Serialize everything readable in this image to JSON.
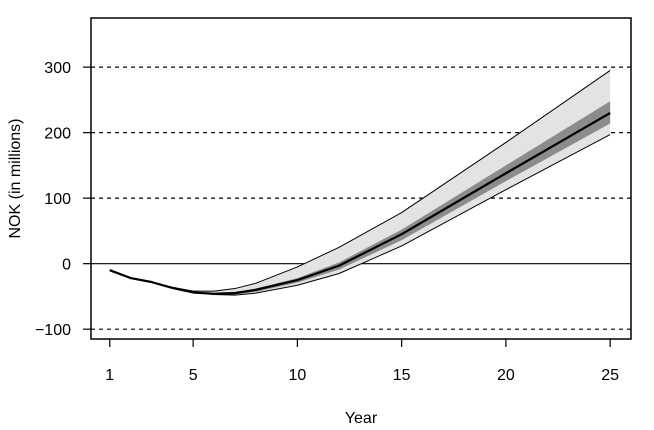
{
  "chart_data": {
    "type": "line",
    "title": "",
    "xlabel": "Year",
    "ylabel": "NOK (in millions)",
    "xlim": [
      0.1,
      26
    ],
    "ylim": [
      -115,
      375
    ],
    "xticks": [
      1,
      5,
      10,
      15,
      20,
      25
    ],
    "yticks": [
      -100,
      0,
      100,
      200,
      300
    ],
    "xtick_labels": [
      "1",
      "5",
      "10",
      "15",
      "20",
      "25"
    ],
    "ytick_labels": [
      "−100",
      "0",
      "100",
      "200",
      "300"
    ],
    "grid": "dashed horizontal lines at y ticks",
    "reference_line": 0,
    "colors": {
      "outer_band": "#e3e3e3",
      "inner_band": "#8c8c8c",
      "line": "#000000"
    },
    "series": [
      {
        "role": "outer_upper",
        "x": [
          1,
          2,
          3,
          4,
          5,
          6,
          7,
          8,
          10,
          12,
          15,
          20,
          25
        ],
        "values": [
          -10,
          -22,
          -28,
          -36,
          -42,
          -42,
          -38,
          -30,
          -5,
          25,
          78,
          185,
          295
        ]
      },
      {
        "role": "inner_upper",
        "x": [
          1,
          2,
          3,
          4,
          5,
          6,
          7,
          8,
          10,
          12,
          15,
          20,
          25
        ],
        "values": [
          -10,
          -22,
          -28,
          -37,
          -43,
          -44,
          -43,
          -38,
          -22,
          2,
          52,
          150,
          248
        ]
      },
      {
        "role": "median",
        "x": [
          1,
          2,
          3,
          4,
          5,
          6,
          7,
          8,
          10,
          12,
          15,
          20,
          25
        ],
        "values": [
          -10,
          -22,
          -28,
          -37,
          -44,
          -46,
          -45,
          -40,
          -25,
          -3,
          45,
          138,
          230
        ]
      },
      {
        "role": "inner_lower",
        "x": [
          1,
          2,
          3,
          4,
          5,
          6,
          7,
          8,
          10,
          12,
          15,
          20,
          25
        ],
        "values": [
          -10,
          -22,
          -28,
          -37,
          -44,
          -47,
          -47,
          -43,
          -29,
          -9,
          36,
          126,
          214
        ]
      },
      {
        "role": "outer_lower",
        "x": [
          1,
          2,
          3,
          4,
          5,
          6,
          7,
          8,
          10,
          12,
          15,
          20,
          25
        ],
        "values": [
          -10,
          -22,
          -28,
          -37,
          -44,
          -47,
          -48,
          -45,
          -33,
          -15,
          27,
          113,
          197
        ]
      }
    ]
  }
}
